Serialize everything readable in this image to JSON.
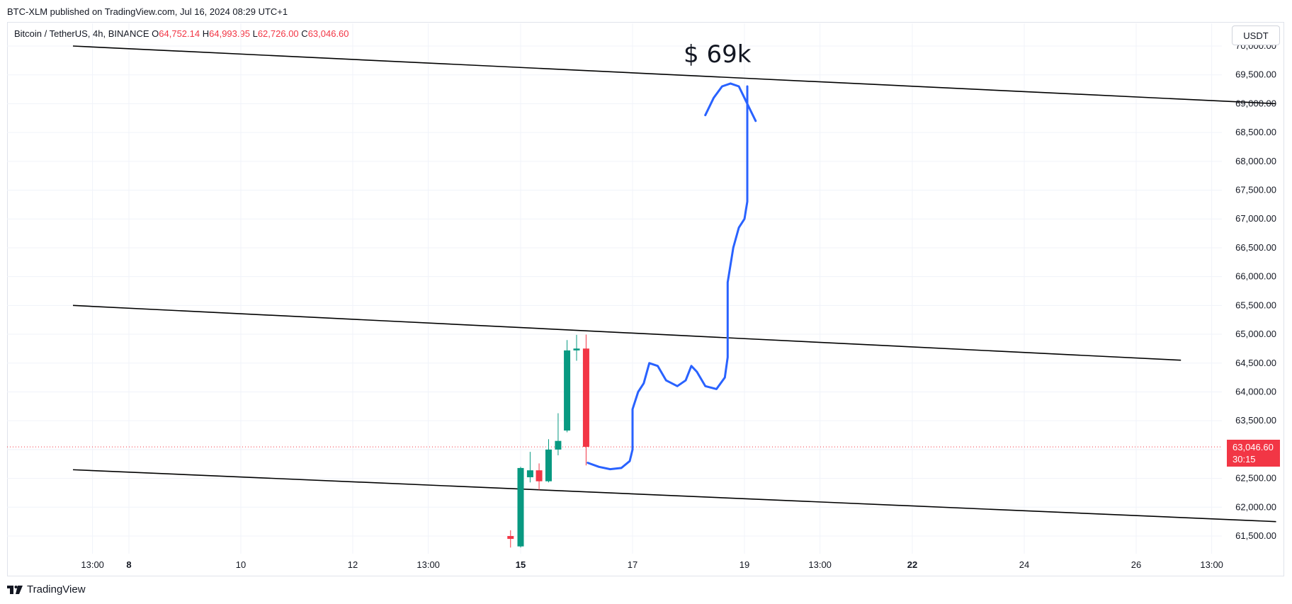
{
  "header": {
    "publish_text": "BTC-XLM published on TradingView.com, Jul 16, 2024 08:29 UTC+1"
  },
  "legend": {
    "symbol": "Bitcoin / TetherUS, 4h, BINANCE",
    "o_label": "O",
    "o_value": "64,752.14",
    "h_label": "H",
    "h_value": "64,993.95",
    "l_label": "L",
    "l_value": "62,726.00",
    "c_label": "C",
    "c_value": "63,046.60"
  },
  "unit_button": "USDT",
  "price_tag": {
    "price": "63,046.60",
    "countdown": "30:15"
  },
  "annotation": "$ 69k",
  "footer": {
    "brand": "TradingView"
  },
  "colors": {
    "up": "#089981",
    "down": "#f23645",
    "drawing": "#2962ff",
    "trendline": "#000000",
    "grid": "#f0f3fa"
  },
  "chart_data": {
    "type": "candlestick",
    "y_ticks": [
      "61,500.00",
      "62,000.00",
      "62,500.00",
      "63,000.00",
      "63,500.00",
      "64,000.00",
      "64,500.00",
      "65,000.00",
      "65,500.00",
      "66,000.00",
      "66,500.00",
      "67,000.00",
      "67,500.00",
      "68,000.00",
      "68,500.00",
      "69,000.00",
      "69,500.00",
      "70,000.00"
    ],
    "y_tick_values": [
      61500,
      62000,
      62500,
      63000,
      63500,
      64000,
      64500,
      65000,
      65500,
      66000,
      66500,
      67000,
      67500,
      68000,
      68500,
      69000,
      69500,
      70000
    ],
    "x_ticks": [
      {
        "label": "13:00",
        "bold": false
      },
      {
        "label": "8",
        "bold": true
      },
      {
        "label": "10",
        "bold": false
      },
      {
        "label": "12",
        "bold": false
      },
      {
        "label": "13:00",
        "bold": false
      },
      {
        "label": "15",
        "bold": true
      },
      {
        "label": "17",
        "bold": false
      },
      {
        "label": "19",
        "bold": false
      },
      {
        "label": "13:00",
        "bold": false
      },
      {
        "label": "22",
        "bold": true
      },
      {
        "label": "24",
        "bold": false
      },
      {
        "label": "26",
        "bold": false
      },
      {
        "label": "13:00",
        "bold": false
      }
    ],
    "x_day_start": 7,
    "x_tick_days": [
      7.35,
      8,
      10,
      12,
      13.35,
      15,
      17,
      19,
      20.35,
      22,
      24,
      26,
      27.35
    ],
    "last_price": 63046.6,
    "candles": [
      {
        "t": 14.82,
        "o": 61500,
        "h": 61600,
        "l": 61300,
        "c": 61450
      },
      {
        "t": 15.0,
        "o": 61320,
        "h": 62700,
        "l": 61300,
        "c": 62680
      },
      {
        "t": 15.17,
        "o": 62520,
        "h": 62960,
        "l": 62430,
        "c": 62640
      },
      {
        "t": 15.33,
        "o": 62640,
        "h": 62760,
        "l": 62300,
        "c": 62450
      },
      {
        "t": 15.5,
        "o": 62450,
        "h": 63180,
        "l": 62430,
        "c": 63000
      },
      {
        "t": 15.67,
        "o": 63000,
        "h": 63630,
        "l": 62900,
        "c": 63150
      },
      {
        "t": 15.83,
        "o": 63330,
        "h": 64900,
        "l": 63300,
        "c": 64720
      },
      {
        "t": 16.0,
        "o": 64720,
        "h": 64990,
        "l": 64540,
        "c": 64752.14
      },
      {
        "t": 16.17,
        "o": 64752.14,
        "h": 64993.95,
        "l": 62726,
        "c": 63046.6
      }
    ],
    "trendlines": [
      {
        "t1": 7.0,
        "p1": 70000,
        "t2": 28.5,
        "p2": 69000
      },
      {
        "t1": 7.0,
        "p1": 65500,
        "t2": 26.8,
        "p2": 64550
      },
      {
        "t1": 7.0,
        "p1": 62650,
        "t2": 28.5,
        "p2": 61750
      }
    ],
    "projection": [
      [
        16.2,
        62770
      ],
      [
        16.4,
        62700
      ],
      [
        16.6,
        62660
      ],
      [
        16.8,
        62680
      ],
      [
        16.95,
        62800
      ],
      [
        17.0,
        63000
      ],
      [
        17.0,
        63700
      ],
      [
        17.1,
        64000
      ],
      [
        17.2,
        64150
      ],
      [
        17.3,
        64500
      ],
      [
        17.45,
        64450
      ],
      [
        17.6,
        64200
      ],
      [
        17.8,
        64100
      ],
      [
        17.95,
        64200
      ],
      [
        18.05,
        64450
      ],
      [
        18.15,
        64350
      ],
      [
        18.3,
        64100
      ],
      [
        18.5,
        64050
      ],
      [
        18.65,
        64250
      ],
      [
        18.7,
        64600
      ],
      [
        18.7,
        65900
      ],
      [
        18.8,
        66500
      ],
      [
        18.9,
        66850
      ],
      [
        19.0,
        67000
      ],
      [
        19.05,
        67300
      ],
      [
        19.05,
        69300
      ]
    ],
    "projection_hook": [
      [
        18.3,
        68800
      ],
      [
        18.45,
        69100
      ],
      [
        18.6,
        69300
      ],
      [
        18.75,
        69350
      ],
      [
        18.9,
        69300
      ],
      [
        19.0,
        69100
      ],
      [
        19.1,
        68900
      ],
      [
        19.2,
        68700
      ]
    ]
  }
}
